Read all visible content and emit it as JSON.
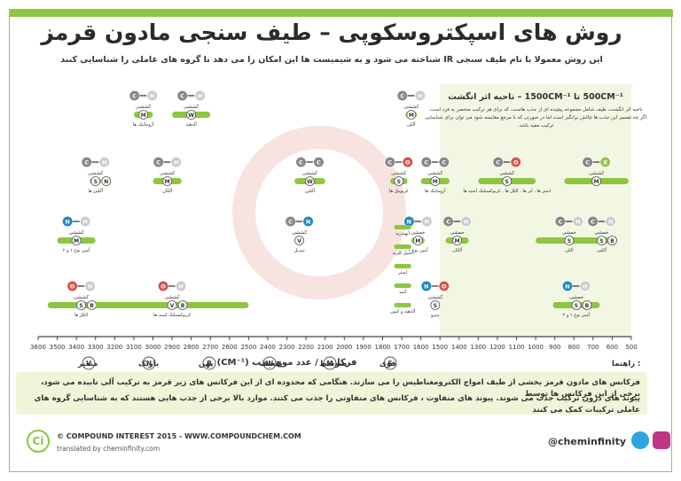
{
  "title": "روش های اسپکتروسکوپی – طیف سنجی مادون قرمز",
  "subtitle": "این روش معمولا با نام طیف سنجی IR شناخته می شود و به شیمیست ها این امکان را می دهد تا گروه های عاملی را شناسایی کنند",
  "fingerprint": {
    "heading": "500CM⁻¹  تا  1500CM⁻¹  – ناحیه اثر انگشت",
    "line1": "ناحیه اثر انگشت، طیف شامل مجموعه پیچیده ای از جذب هاست، که برای هر ترکیب منحصر به فرد است.",
    "line2": "اگر چه تفسیر این جذب ها چالش برانگیز است اما در صورتی که با مرجع مقایسه شود می توان برای شناسایی",
    "line3": "ترکیب مفید باشد."
  },
  "chart_data": {
    "type": "scatter",
    "xlabel": "فرکانس / عدد موج جذب (CM⁻¹)",
    "xlim": [
      3600,
      500
    ],
    "xticks": [
      3600,
      3500,
      3400,
      3300,
      3200,
      3100,
      3000,
      2900,
      2800,
      2700,
      2600,
      2500,
      2400,
      2300,
      2200,
      2100,
      2000,
      1900,
      1800,
      1700,
      1600,
      1500,
      1400,
      1300,
      1200,
      1100,
      1000,
      900,
      800,
      700,
      600,
      500
    ],
    "bands": [
      {
        "atoms": [
          "C",
          "H"
        ],
        "colors": [
          "#888888",
          "#cccccc"
        ],
        "name": "کششی",
        "sub": "آروماتیک ها",
        "x1": 3100,
        "x2": 3000,
        "row": 0,
        "intensity": "M"
      },
      {
        "atoms": [
          "C",
          "H"
        ],
        "colors": [
          "#888888",
          "#cccccc"
        ],
        "name": "کششی",
        "sub": "آلدهید",
        "x1": 2900,
        "x2": 2700,
        "row": 0,
        "intensity": "W"
      },
      {
        "atoms": [
          "C",
          "H"
        ],
        "colors": [
          "#888888",
          "#cccccc"
        ],
        "name": "کششی",
        "sub": "آلکن",
        "x1": 1680,
        "x2": 1620,
        "row": 0,
        "intensity": "M"
      },
      {
        "atoms": [
          "C",
          "H"
        ],
        "colors": [
          "#888888",
          "#cccccc"
        ],
        "name": "کششی",
        "sub": "آلکین ها",
        "x1": 3330,
        "x2": 3270,
        "row": 1,
        "intensity": "S",
        "int2": "N"
      },
      {
        "atoms": [
          "C",
          "H"
        ],
        "colors": [
          "#888888",
          "#cccccc"
        ],
        "name": "کششی",
        "sub": "آلکان",
        "x1": 3000,
        "x2": 2850,
        "row": 1,
        "intensity": "M"
      },
      {
        "atoms": [
          "C",
          "C"
        ],
        "colors": [
          "#888888",
          "#888888"
        ],
        "name": "کششی",
        "sub": "آلکین",
        "x1": 2260,
        "x2": 2100,
        "row": 1,
        "intensity": "W"
      },
      {
        "atoms": [
          "C",
          "O"
        ],
        "colors": [
          "#888888",
          "#d9534f"
        ],
        "name": "کششی",
        "sub": "کربونیل ها",
        "x1": 1760,
        "x2": 1670,
        "row": 1,
        "intensity": "S"
      },
      {
        "atoms": [
          "C",
          "C"
        ],
        "colors": [
          "#888888",
          "#888888"
        ],
        "name": "کششی",
        "sub": "آروماتیک ها",
        "x1": 1600,
        "x2": 1450,
        "row": 1,
        "intensity": "M"
      },
      {
        "atoms": [
          "C",
          "O"
        ],
        "colors": [
          "#888888",
          "#d9534f"
        ],
        "name": "کششی",
        "sub": "استر ها ، اتر ها ، الکل ها ، کربوکسیلیک اسید ها",
        "x1": 1300,
        "x2": 1000,
        "row": 1,
        "intensity": "S"
      },
      {
        "atoms": [
          "C",
          "X"
        ],
        "colors": [
          "#888888",
          "#8dc63f"
        ],
        "name": "کششی",
        "sub": "",
        "x1": 850,
        "x2": 515,
        "row": 1,
        "intensity": "M"
      },
      {
        "atoms": [
          "N",
          "H"
        ],
        "colors": [
          "#1f8ac0",
          "#cccccc"
        ],
        "name": "کششی",
        "sub": "آمین نوع ۱ و ۲",
        "x1": 3500,
        "x2": 3300,
        "row": 2,
        "intensity": "M"
      },
      {
        "atoms": [
          "C",
          "N"
        ],
        "colors": [
          "#888888",
          "#1f8ac0"
        ],
        "name": "کششی",
        "sub": "نیتریل",
        "x1": 2260,
        "x2": 2210,
        "row": 2,
        "intensity": "V"
      },
      {
        "atoms": [
          "N",
          "H"
        ],
        "colors": [
          "#1f8ac0",
          "#cccccc"
        ],
        "name": "خمشی",
        "sub": "آمین نوع ۱",
        "x1": 1650,
        "x2": 1580,
        "row": 2,
        "intensity": "M"
      },
      {
        "atoms": [
          "C",
          "H"
        ],
        "colors": [
          "#888888",
          "#cccccc"
        ],
        "name": "خمشی",
        "sub": "آلکان",
        "x1": 1470,
        "x2": 1350,
        "row": 2,
        "intensity": "M"
      },
      {
        "atoms": [
          "N",
          "O"
        ],
        "colors": [
          "#1f8ac0",
          "#d9534f"
        ],
        "name": "کششی",
        "sub": "نیترو",
        "x1": 1550,
        "x2": 1500,
        "row": 3,
        "intensity": "S"
      },
      {
        "atoms": [
          "O",
          "H"
        ],
        "colors": [
          "#d9534f",
          "#cccccc"
        ],
        "name": "کششی",
        "sub": "الکل ها",
        "x1": 3550,
        "x2": 3200,
        "row": 3,
        "intensity": "S",
        "int2": "B"
      },
      {
        "atoms": [
          "O",
          "H"
        ],
        "colors": [
          "#d9534f",
          "#cccccc"
        ],
        "name": "کششی",
        "sub": "کربوکسیلیک اسید ها",
        "x1": 3300,
        "x2": 2500,
        "row": 3,
        "intensity": "V",
        "int2": "B"
      },
      {
        "atoms": [
          "C",
          "H"
        ],
        "colors": [
          "#888888",
          "#cccccc"
        ],
        "name": "خمشی",
        "sub": "آلکن",
        "x1": 1000,
        "x2": 650,
        "row": 2,
        "intensity": "S"
      },
      {
        "atoms": [
          "C",
          "H"
        ],
        "colors": [
          "#888888",
          "#cccccc"
        ],
        "name": "خمشی",
        "sub": "آلکین",
        "x1": 700,
        "x2": 610,
        "row": 2,
        "intensity": "S",
        "int2": "B"
      },
      {
        "atoms": [
          "N",
          "H"
        ],
        "colors": [
          "#1f8ac0",
          "#cccccc"
        ],
        "name": "خمشی",
        "sub": "آمین نوع ۱ و ۲",
        "x1": 910,
        "x2": 665,
        "row": 3,
        "intensity": "S",
        "int2": "B"
      }
    ],
    "carbonyl_labels": [
      "آلدهید و کتون",
      "آمید",
      "استر",
      "آسیل کلرید",
      "آنهیدرید"
    ],
    "legend": [
      {
        "code": "S",
        "label": "قوی"
      },
      {
        "code": "M",
        "label": "متوسط"
      },
      {
        "code": "W",
        "label": "ضعیف"
      },
      {
        "code": "B",
        "label": "پهن"
      },
      {
        "code": "N",
        "label": "باریک"
      },
      {
        "code": "V",
        "label": "متغیر"
      }
    ],
    "legend_title": ": راهنما"
  },
  "bottom": {
    "line1": "فرکانس های مادون قرمز بخشی از طیف امواج الکترومغناطیس را می سازند. هنگامی که محدوده ای از این فرکانس های زیر قرمز به ترکیب آلی تابیده می شود، برخی از این فرکانس ها توسط",
    "line2": "پیوند های درون ترکیب جذب می شوند. پیوند های متفاوت ، فرکانس های متفاوتی را جذب می کنند. موارد بالا برخی از جذب هایی هستند که به شناسایی گروه های عاملی ترکیبات کمک می کنند"
  },
  "footer": {
    "logo": "Ci",
    "copyright": "© COMPOUND INTEREST 2015 - WWW.COMPOUNDCHEM.COM",
    "translated": "translated by cheminfinity.com",
    "handle": "@cheminfinity"
  },
  "colors": {
    "green": "#8dc63f",
    "grey": "#888888",
    "red": "#d9534f",
    "blue": "#1f8ac0"
  }
}
